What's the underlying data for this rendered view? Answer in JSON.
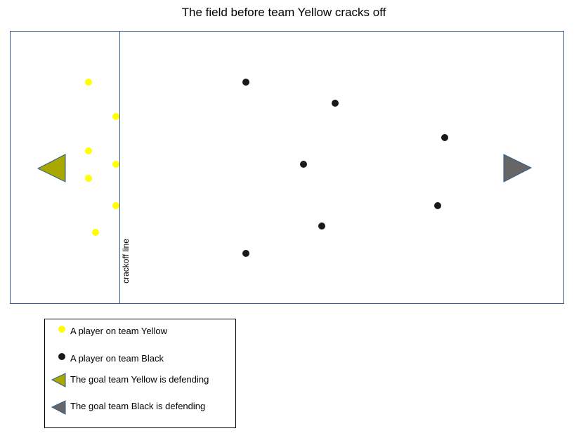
{
  "title": "The field before team Yellow cracks off",
  "crackoff_label": "crackoff line",
  "colors": {
    "border": "#2e5d8e",
    "yellow_player": "#ffff00",
    "black_player": "#1a1a1a",
    "yellow_goal": "#a8a800",
    "black_goal": "#666666"
  },
  "legend": {
    "yellow_player": "A player on team Yellow",
    "black_player": "A player on team Black",
    "yellow_goal": "The goal team Yellow is defending",
    "black_goal": "The goal team Black is defending"
  }
}
